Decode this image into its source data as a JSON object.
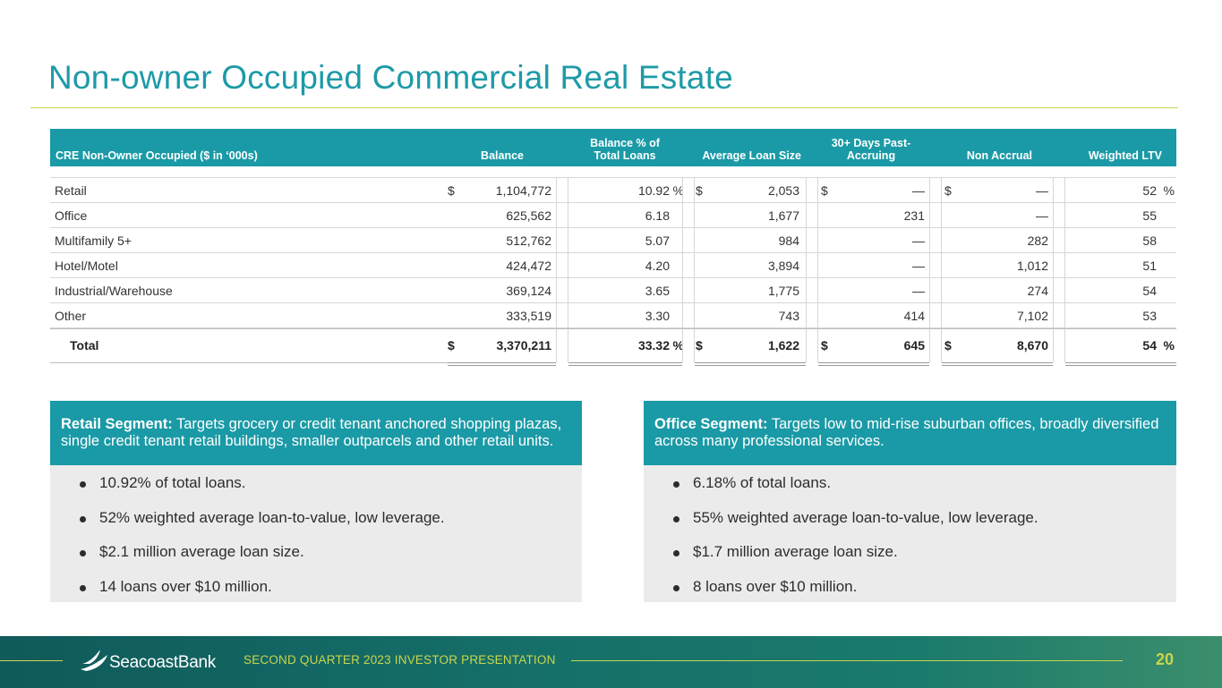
{
  "title": "Non-owner Occupied Commercial Real Estate",
  "table": {
    "headers": {
      "label": "CRE Non-Owner Occupied  ($ in ‘000s)",
      "balance": "Balance",
      "balance_pct_line1": "Balance % of",
      "balance_pct_line2": "Total Loans",
      "avg_loan_size": "Average Loan Size",
      "past_due_line1": "30+ Days Past-",
      "past_due_line2": "Accruing",
      "non_accrual": "Non Accrual",
      "weighted_ltv": "Weighted LTV"
    },
    "rows": [
      {
        "label": "Retail",
        "bal_sym": "$",
        "balance": "1,104,772",
        "pct": "10.92",
        "pct_sym": "%",
        "avg_sym": "$",
        "avg": "2,053",
        "pd_sym": "$",
        "pd": "—",
        "na_sym": "$",
        "na": "—",
        "ltv": "52",
        "ltv_sym": "%"
      },
      {
        "label": "Office",
        "bal_sym": "",
        "balance": "625,562",
        "pct": "6.18",
        "pct_sym": "",
        "avg_sym": "",
        "avg": "1,677",
        "pd_sym": "",
        "pd": "231",
        "na_sym": "",
        "na": "—",
        "ltv": "55",
        "ltv_sym": ""
      },
      {
        "label": "Multifamily 5+",
        "bal_sym": "",
        "balance": "512,762",
        "pct": "5.07",
        "pct_sym": "",
        "avg_sym": "",
        "avg": "984",
        "pd_sym": "",
        "pd": "—",
        "na_sym": "",
        "na": "282",
        "ltv": "58",
        "ltv_sym": ""
      },
      {
        "label": "Hotel/Motel",
        "bal_sym": "",
        "balance": "424,472",
        "pct": "4.20",
        "pct_sym": "",
        "avg_sym": "",
        "avg": "3,894",
        "pd_sym": "",
        "pd": "—",
        "na_sym": "",
        "na": "1,012",
        "ltv": "51",
        "ltv_sym": ""
      },
      {
        "label": "Industrial/Warehouse",
        "bal_sym": "",
        "balance": "369,124",
        "pct": "3.65",
        "pct_sym": "",
        "avg_sym": "",
        "avg": "1,775",
        "pd_sym": "",
        "pd": "—",
        "na_sym": "",
        "na": "274",
        "ltv": "54",
        "ltv_sym": ""
      },
      {
        "label": "Other",
        "bal_sym": "",
        "balance": "333,519",
        "pct": "3.30",
        "pct_sym": "",
        "avg_sym": "",
        "avg": "743",
        "pd_sym": "",
        "pd": "414",
        "na_sym": "",
        "na": "7,102",
        "ltv": "53",
        "ltv_sym": ""
      }
    ],
    "total": {
      "label": "Total",
      "bal_sym": "$",
      "balance": "3,370,211",
      "pct": "33.32",
      "pct_sym": "%",
      "avg_sym": "$",
      "avg": "1,622",
      "pd_sym": "$",
      "pd": "645",
      "na_sym": "$",
      "na": "8,670",
      "ltv": "54",
      "ltv_sym": "%"
    }
  },
  "retail_segment": {
    "heading_bold": "Retail Segment:",
    "heading_text": " Targets grocery or credit tenant anchored shopping plazas, single credit tenant retail buildings, smaller outparcels and other retail units.",
    "bullets": [
      "10.92% of total loans.",
      "52% weighted average loan-to-value, low leverage.",
      "$2.1 million average loan size.",
      "14 loans over $10 million."
    ]
  },
  "office_segment": {
    "heading_bold": "Office Segment:",
    "heading_text": " Targets low to mid-rise suburban offices, broadly diversified across many professional services.",
    "bullets": [
      "6.18% of total loans.",
      "55% weighted average loan-to-value, low leverage.",
      "$1.7 million average loan size.",
      "8 loans over $10 million."
    ]
  },
  "footer": {
    "logo_text": "SeacoastBank",
    "presentation": "SECOND QUARTER 2023 INVESTOR PRESENTATION",
    "page_number": "20"
  },
  "colors": {
    "accent_teal": "#1a9aa6",
    "accent_lime": "#c9d64b",
    "footer_green": "#16706a"
  }
}
